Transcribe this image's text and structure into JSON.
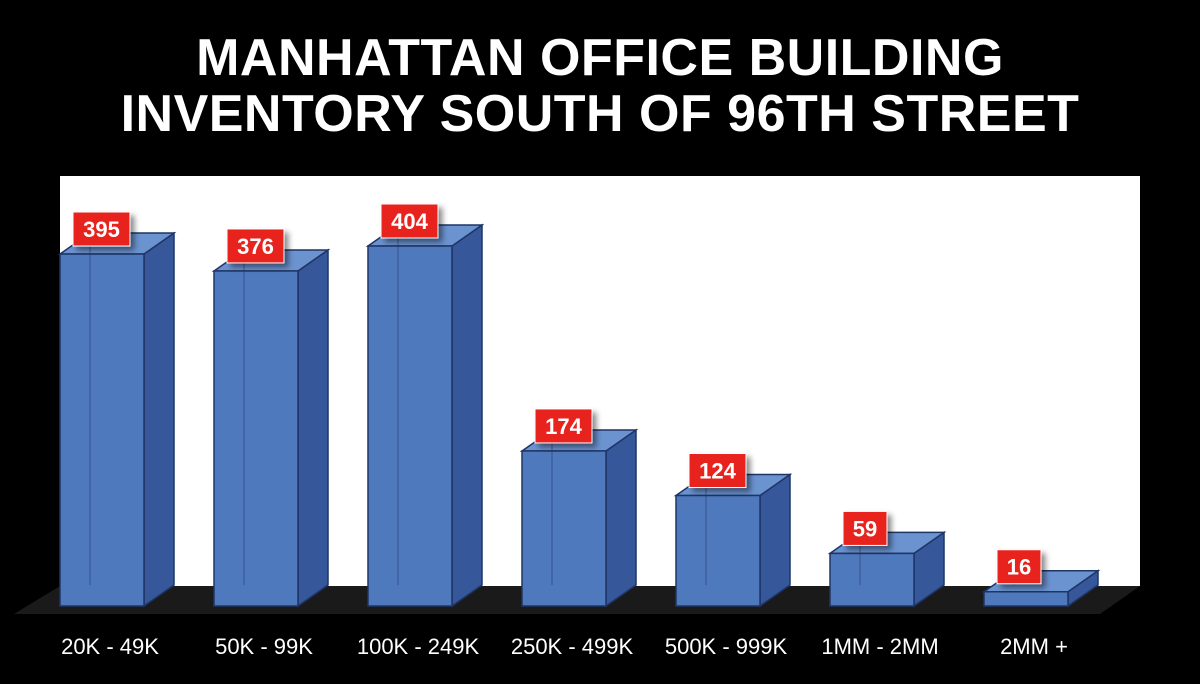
{
  "chart_data": {
    "type": "bar",
    "title": [
      "MANHATTAN OFFICE BUILDING",
      "INVENTORY SOUTH OF 96TH STREET"
    ],
    "categories": [
      "20K - 49K",
      "50K - 99K",
      "100K - 249K",
      "250K - 499K",
      "500K - 999K",
      "1MM - 2MM",
      "2MM +"
    ],
    "values": [
      395,
      376,
      404,
      174,
      124,
      59,
      16
    ],
    "xlabel": "",
    "ylabel": "",
    "ylim": [
      0,
      404
    ],
    "grid": false,
    "legend": "none",
    "three_d": true
  },
  "colors": {
    "background": "#000000",
    "plot_area": "#ffffff",
    "floor": "#1a1a1a",
    "bar_front": "#4f79bd",
    "bar_side": "#36579a",
    "bar_top": "#6b93d0",
    "bar_edge": "#1f3566",
    "label_box": "#e8201f",
    "label_text": "#ffffff",
    "tick_text": "#ffffff"
  }
}
